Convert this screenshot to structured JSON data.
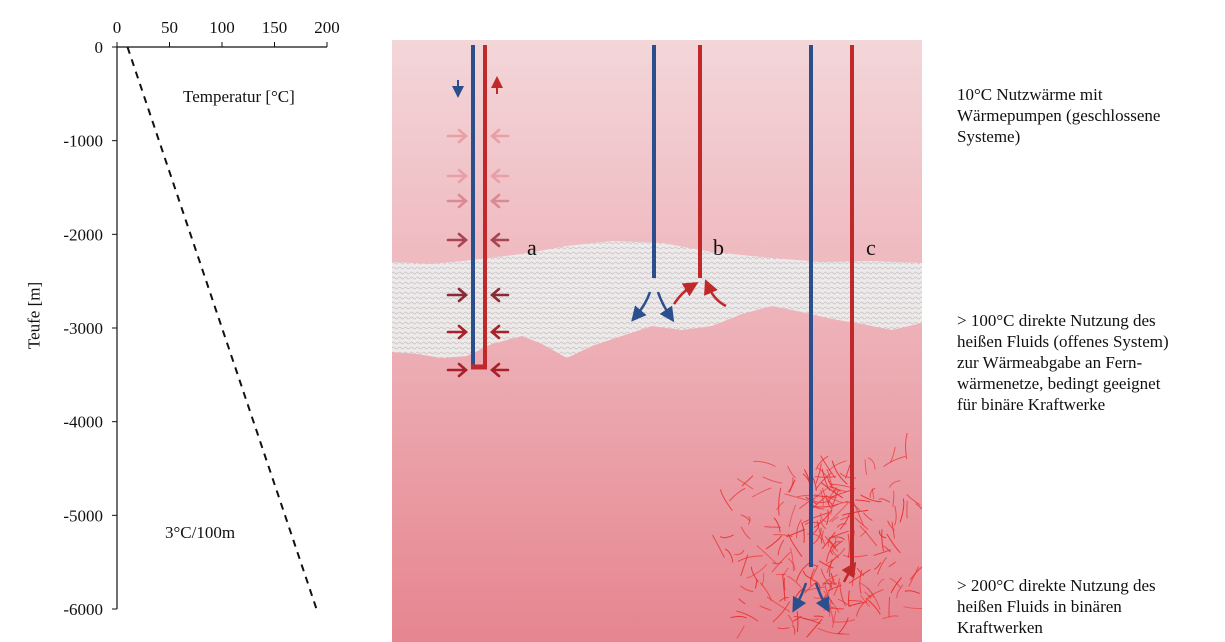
{
  "chart": {
    "x_ticks": [
      "0",
      "50",
      "100",
      "150",
      "200"
    ],
    "y_ticks": [
      "0",
      "-1000",
      "-2000",
      "-3000",
      "-4000",
      "-5000",
      "-6000"
    ],
    "x_axis_label": "Temperatur [°C]",
    "y_axis_label": "Teufe [m]",
    "gradient_label": "3°C/100m"
  },
  "chart_data": {
    "type": "line",
    "xlabel": "Temperatur [°C]",
    "ylabel": "Teufe [m]",
    "xlim": [
      0,
      200
    ],
    "ylim": [
      -6000,
      0
    ],
    "series": [
      {
        "x": [
          10,
          190
        ],
        "y": [
          0,
          -6000
        ],
        "style": "dashed",
        "color": "#111111"
      }
    ],
    "annotations": [
      "3°C/100m"
    ]
  },
  "wells": {
    "a": "a",
    "b": "b",
    "c": "c"
  },
  "notes": {
    "shallow": "10°C Nutzwärme mit\nWärmepumpen (geschlossene\nSysteme)",
    "medium": "> 100°C direkte Nutzung des\nheißen Fluids (offenes System)\nzur Wärmeabgabe an Fern-\nwärmenetze, bedingt geeignet\nfür binäre Kraftwerke",
    "deep": "> 200°C direkte Nutzung des\n heißen Fluids in binären\nKraftwerken"
  },
  "colors": {
    "cold_pipe": "#2b4e8c",
    "hot_pipe": "#c0282a",
    "rock_top": "#f2d3d6",
    "rock_bottom": "#e88d96",
    "fracture": "#e83030"
  }
}
